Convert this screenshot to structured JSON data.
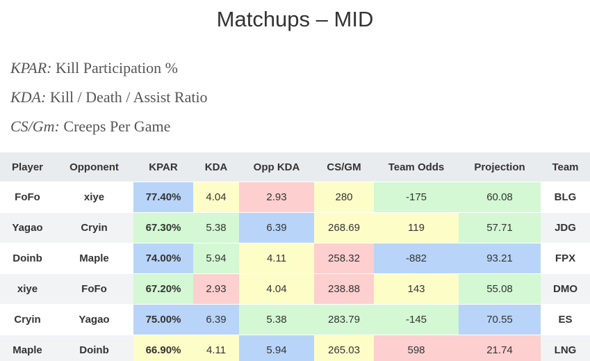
{
  "title": "Matchups – MID",
  "legend": [
    {
      "abbr": "KPAR:",
      "desc": "Kill Participation %"
    },
    {
      "abbr": "KDA:",
      "desc": "Kill / Death / Assist Ratio"
    },
    {
      "abbr": "CS/Gm:",
      "desc": "Creeps Per Game"
    }
  ],
  "table": {
    "headers": [
      "Player",
      "Opponent",
      "KPAR",
      "KDA",
      "Opp KDA",
      "CS/GM",
      "Team Odds",
      "Projection",
      "Team"
    ],
    "rows": [
      {
        "player": "FoFo",
        "opponent": "xiye",
        "kpar": "77.40%",
        "kda": "4.04",
        "opp_kda": "2.93",
        "cs_gm": "280",
        "team_odds": "-175",
        "projection": "60.08",
        "team": "BLG"
      },
      {
        "player": "Yagao",
        "opponent": "Cryin",
        "kpar": "67.30%",
        "kda": "5.38",
        "opp_kda": "6.39",
        "cs_gm": "268.69",
        "team_odds": "119",
        "projection": "57.71",
        "team": "JDG"
      },
      {
        "player": "Doinb",
        "opponent": "Maple",
        "kpar": "74.00%",
        "kda": "5.94",
        "opp_kda": "4.11",
        "cs_gm": "258.32",
        "team_odds": "-882",
        "projection": "93.21",
        "team": "FPX"
      },
      {
        "player": "xiye",
        "opponent": "FoFo",
        "kpar": "67.20%",
        "kda": "2.93",
        "opp_kda": "4.04",
        "cs_gm": "238.88",
        "team_odds": "143",
        "projection": "55.08",
        "team": "DMO"
      },
      {
        "player": "Cryin",
        "opponent": "Yagao",
        "kpar": "75.00%",
        "kda": "6.39",
        "opp_kda": "5.38",
        "cs_gm": "283.79",
        "team_odds": "-145",
        "projection": "70.55",
        "team": "ES"
      },
      {
        "player": "Maple",
        "opponent": "Doinb",
        "kpar": "66.90%",
        "kda": "4.11",
        "opp_kda": "5.94",
        "cs_gm": "265.03",
        "team_odds": "598",
        "projection": "21.74",
        "team": "LNG"
      }
    ]
  },
  "colors": {
    "blue": "#b8d4f8",
    "green": "#d3f8d3",
    "yellow": "#fdfdc8",
    "red": "#fdcfcf",
    "header_bg": "#e9ecef",
    "stripe_bg": "#f1f3f5"
  }
}
